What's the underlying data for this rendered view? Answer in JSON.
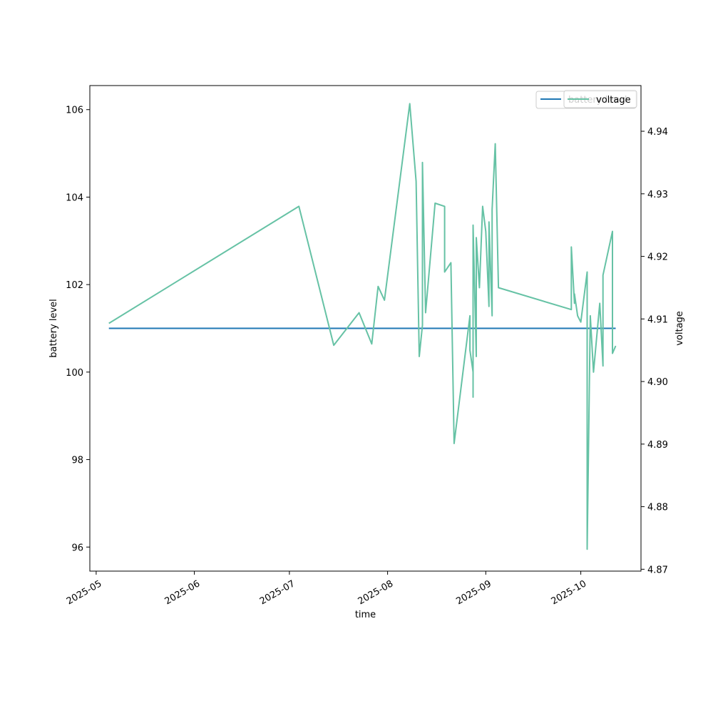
{
  "chart_data": {
    "type": "line",
    "xlabel": "time",
    "ylabel": "battery level",
    "y2label": "voltage",
    "x_ticks": [
      "2025-05-01",
      "2025-06-01",
      "2025-07-01",
      "2025-08-01",
      "2025-09-01",
      "2025-10-01"
    ],
    "x_tick_labels": [
      "2025-05",
      "2025-06",
      "2025-07",
      "2025-08",
      "2025-09",
      "2025-10"
    ],
    "xlim": [
      "2025-04-29",
      "2025-10-20"
    ],
    "ylim": [
      95.45,
      106.55
    ],
    "y_ticks": [
      96,
      98,
      100,
      102,
      104,
      106
    ],
    "y2lim": [
      4.8697,
      4.9473
    ],
    "y2_ticks": [
      4.87,
      4.88,
      4.89,
      4.9,
      4.91,
      4.92,
      4.93,
      4.94
    ],
    "y2_tick_labels": [
      "4.87",
      "4.88",
      "4.89",
      "4.90",
      "4.91",
      "4.92",
      "4.93",
      "4.94"
    ],
    "legend_position": "top-right",
    "series": [
      {
        "name": "battery level",
        "axis": "left",
        "color": "#1f77b4",
        "x": [
          "2025-05-05",
          "2025-10-12"
        ],
        "y": [
          101,
          101
        ]
      },
      {
        "name": "voltage",
        "axis": "right",
        "color": "#66c2a5",
        "x": [
          "2025-05-05",
          "2025-07-04",
          "2025-07-15",
          "2025-07-23",
          "2025-07-27",
          "2025-07-29",
          "2025-07-31",
          "2025-08-08",
          "2025-08-10",
          "2025-08-11",
          "2025-08-12",
          "2025-08-12",
          "2025-08-13",
          "2025-08-16",
          "2025-08-19",
          "2025-08-19",
          "2025-08-21",
          "2025-08-22",
          "2025-08-27",
          "2025-08-27",
          "2025-08-28",
          "2025-08-28",
          "2025-08-28",
          "2025-08-28",
          "2025-08-29",
          "2025-08-29",
          "2025-08-30",
          "2025-08-31",
          "2025-09-01",
          "2025-09-02",
          "2025-09-02",
          "2025-09-03",
          "2025-09-03",
          "2025-09-04",
          "2025-09-05",
          "2025-09-05",
          "2025-09-28",
          "2025-09-28",
          "2025-09-29",
          "2025-09-29",
          "2025-09-30",
          "2025-10-01",
          "2025-10-03",
          "2025-10-03",
          "2025-10-04",
          "2025-10-05",
          "2025-10-07",
          "2025-10-08",
          "2025-10-08",
          "2025-10-11",
          "2025-10-11",
          "2025-10-12"
        ],
        "y": [
          4.9093,
          4.928,
          4.9058,
          4.911,
          4.906,
          4.9152,
          4.913,
          4.9444,
          4.932,
          4.904,
          4.909,
          4.935,
          4.911,
          4.9285,
          4.928,
          4.9175,
          4.919,
          4.8901,
          4.9105,
          4.905,
          4.9015,
          4.925,
          4.8975,
          4.925,
          4.904,
          4.923,
          4.915,
          4.928,
          4.924,
          4.912,
          4.9255,
          4.9105,
          4.9275,
          4.938,
          4.915,
          4.915,
          4.9115,
          4.9215,
          4.9125,
          4.914,
          4.9105,
          4.9095,
          4.9175,
          4.8732,
          4.9105,
          4.9015,
          4.9125,
          4.9025,
          4.917,
          4.924,
          4.9045,
          4.9057
        ]
      }
    ]
  }
}
